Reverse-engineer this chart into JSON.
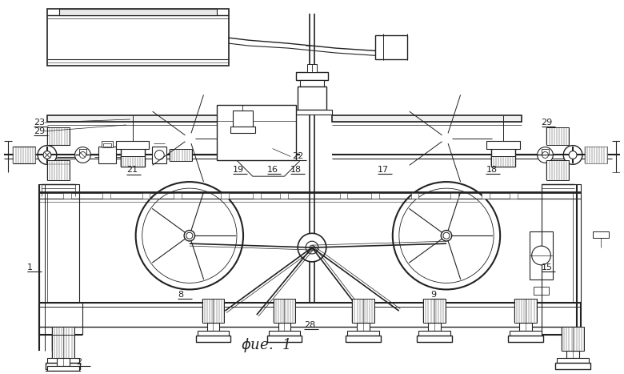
{
  "fig_width": 7.8,
  "fig_height": 4.67,
  "dpi": 100,
  "bg_color": "#ffffff",
  "lc": "#222222",
  "lw": 0.7
}
